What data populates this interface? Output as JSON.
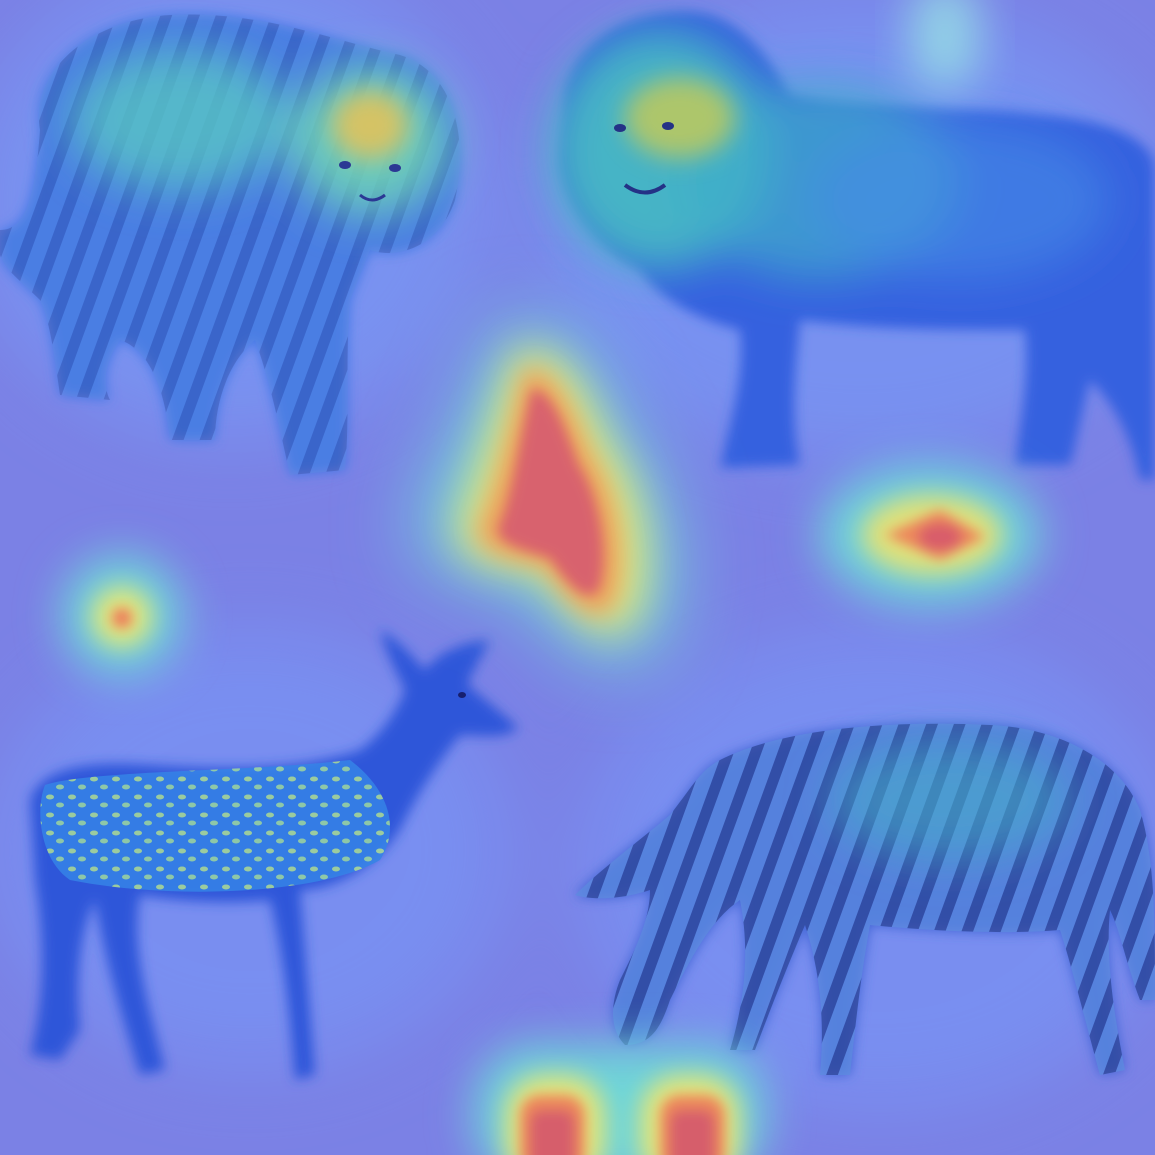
{
  "image": {
    "kind": "heatmap-overlay",
    "subjects": [
      "tiger",
      "lion",
      "deer",
      "zebra"
    ],
    "colormap": "jet",
    "base_color": "#7e83e6",
    "hotspots": [
      {
        "name": "center-blob",
        "intensity": 1.0
      },
      {
        "name": "right-small",
        "intensity": 0.85
      },
      {
        "name": "left-small",
        "intensity": 0.75
      },
      {
        "name": "bottom-pair",
        "intensity": 1.0
      },
      {
        "name": "top-streak",
        "intensity": 0.45
      },
      {
        "name": "tiger-head",
        "intensity": 0.6
      },
      {
        "name": "lion-head",
        "intensity": 0.55
      }
    ]
  }
}
